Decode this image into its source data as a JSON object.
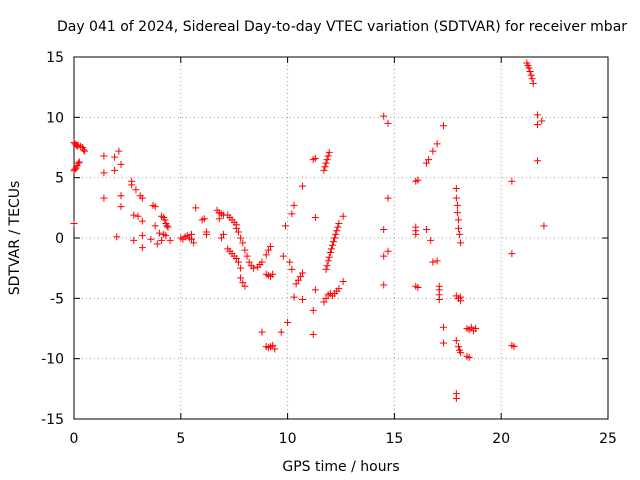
{
  "chart_data": {
    "type": "scatter",
    "title": "Day 041 of 2024, Sidereal Day-to-day VTEC variation (SDTVAR) for receiver mbar",
    "xlabel": "GPS time / hours",
    "ylabel": "SDTVAR / TECUs",
    "xlim": [
      0,
      25
    ],
    "ylim": [
      -15,
      15
    ],
    "xticks": [
      0,
      5,
      10,
      15,
      20,
      25
    ],
    "yticks": [
      -15,
      -10,
      -5,
      0,
      5,
      10,
      15
    ],
    "grid": true,
    "marker": "+",
    "color": "#ff0000",
    "points": [
      [
        0.0,
        7.9
      ],
      [
        0.05,
        7.8
      ],
      [
        0.1,
        7.7
      ],
      [
        0.15,
        7.6
      ],
      [
        0.2,
        7.7
      ],
      [
        0.3,
        7.6
      ],
      [
        0.4,
        7.5
      ],
      [
        0.45,
        7.3
      ],
      [
        0.5,
        7.2
      ],
      [
        0.0,
        5.6
      ],
      [
        0.05,
        5.7
      ],
      [
        0.1,
        5.8
      ],
      [
        0.15,
        6.0
      ],
      [
        0.2,
        6.2
      ],
      [
        0.25,
        6.3
      ],
      [
        0.0,
        1.2
      ],
      [
        1.4,
        6.8
      ],
      [
        1.4,
        5.4
      ],
      [
        1.4,
        3.3
      ],
      [
        1.9,
        6.7
      ],
      [
        1.9,
        5.6
      ],
      [
        2.1,
        7.2
      ],
      [
        2.2,
        6.1
      ],
      [
        2.2,
        3.5
      ],
      [
        2.2,
        2.6
      ],
      [
        2.0,
        0.1
      ],
      [
        2.7,
        4.7
      ],
      [
        2.7,
        4.4
      ],
      [
        2.8,
        1.9
      ],
      [
        2.8,
        -0.2
      ],
      [
        2.9,
        4.0
      ],
      [
        3.0,
        1.8
      ],
      [
        3.1,
        3.5
      ],
      [
        3.2,
        3.3
      ],
      [
        3.2,
        1.4
      ],
      [
        3.2,
        0.2
      ],
      [
        3.2,
        -0.8
      ],
      [
        3.6,
        -0.1
      ],
      [
        3.7,
        2.7
      ],
      [
        3.8,
        2.6
      ],
      [
        3.8,
        1.0
      ],
      [
        3.9,
        -0.5
      ],
      [
        4.0,
        0.4
      ],
      [
        4.1,
        -0.2
      ],
      [
        4.1,
        1.8
      ],
      [
        4.2,
        1.7
      ],
      [
        4.25,
        1.5
      ],
      [
        4.3,
        1.2
      ],
      [
        4.35,
        1.0
      ],
      [
        4.4,
        0.9
      ],
      [
        4.2,
        0.3
      ],
      [
        4.3,
        0.2
      ],
      [
        4.5,
        -0.2
      ],
      [
        5.0,
        0.0
      ],
      [
        5.1,
        -0.1
      ],
      [
        5.2,
        0.1
      ],
      [
        5.3,
        0.2
      ],
      [
        5.4,
        0.0
      ],
      [
        5.5,
        -0.1
      ],
      [
        5.5,
        0.3
      ],
      [
        5.7,
        2.5
      ],
      [
        5.6,
        -0.4
      ],
      [
        6.0,
        1.5
      ],
      [
        6.1,
        1.6
      ],
      [
        6.2,
        0.5
      ],
      [
        6.2,
        0.3
      ],
      [
        6.7,
        2.3
      ],
      [
        6.8,
        2.1
      ],
      [
        6.9,
        2.0
      ],
      [
        7.0,
        1.9
      ],
      [
        6.8,
        1.6
      ],
      [
        7.0,
        0.3
      ],
      [
        6.9,
        0.0
      ],
      [
        7.2,
        1.9
      ],
      [
        7.3,
        1.7
      ],
      [
        7.4,
        1.5
      ],
      [
        7.5,
        1.3
      ],
      [
        7.6,
        1.1
      ],
      [
        7.6,
        0.8
      ],
      [
        7.7,
        0.5
      ],
      [
        7.2,
        -0.9
      ],
      [
        7.3,
        -1.1
      ],
      [
        7.4,
        -1.3
      ],
      [
        7.5,
        -1.5
      ],
      [
        7.6,
        -1.7
      ],
      [
        7.7,
        -2.0
      ],
      [
        7.8,
        0.0
      ],
      [
        7.9,
        -0.4
      ],
      [
        8.0,
        -1.0
      ],
      [
        8.1,
        -1.5
      ],
      [
        8.2,
        -2.0
      ],
      [
        8.3,
        -2.3
      ],
      [
        8.4,
        -2.5
      ],
      [
        7.8,
        -2.5
      ],
      [
        7.9,
        -3.7
      ],
      [
        8.0,
        -4.0
      ],
      [
        7.8,
        -3.3
      ],
      [
        8.6,
        -2.4
      ],
      [
        8.7,
        -2.2
      ],
      [
        8.8,
        -2.0
      ],
      [
        8.8,
        -7.8
      ],
      [
        9.0,
        -1.4
      ],
      [
        9.1,
        -1.0
      ],
      [
        9.2,
        -0.7
      ],
      [
        9.0,
        -3.0
      ],
      [
        9.1,
        -3.1
      ],
      [
        9.2,
        -3.2
      ],
      [
        9.3,
        -3.0
      ],
      [
        9.0,
        -9.0
      ],
      [
        9.1,
        -9.1
      ],
      [
        9.2,
        -9.0
      ],
      [
        9.3,
        -8.9
      ],
      [
        9.4,
        -9.2
      ],
      [
        9.7,
        -7.8
      ],
      [
        9.8,
        -1.5
      ],
      [
        9.9,
        1.0
      ],
      [
        10.0,
        -7.0
      ],
      [
        10.1,
        -2.0
      ],
      [
        10.2,
        2.0
      ],
      [
        10.3,
        2.7
      ],
      [
        10.2,
        -2.6
      ],
      [
        10.3,
        -4.9
      ],
      [
        10.4,
        -3.8
      ],
      [
        10.5,
        -3.5
      ],
      [
        10.6,
        -3.2
      ],
      [
        10.7,
        4.3
      ],
      [
        10.7,
        -5.1
      ],
      [
        10.7,
        -2.9
      ],
      [
        11.2,
        -6.0
      ],
      [
        11.2,
        -8.0
      ],
      [
        11.2,
        6.5
      ],
      [
        11.3,
        6.6
      ],
      [
        11.3,
        1.7
      ],
      [
        11.3,
        -4.3
      ],
      [
        11.7,
        5.6
      ],
      [
        11.75,
        5.9
      ],
      [
        11.8,
        6.2
      ],
      [
        11.85,
        6.5
      ],
      [
        11.9,
        6.8
      ],
      [
        11.95,
        7.1
      ],
      [
        11.7,
        -5.3
      ],
      [
        11.8,
        -5.0
      ],
      [
        11.9,
        -4.7
      ],
      [
        12.0,
        -4.6
      ],
      [
        12.1,
        -4.8
      ],
      [
        12.2,
        -4.6
      ],
      [
        12.3,
        -4.4
      ],
      [
        12.4,
        -4.2
      ],
      [
        11.8,
        -2.6
      ],
      [
        11.85,
        -2.3
      ],
      [
        11.9,
        -1.9
      ],
      [
        11.95,
        -1.6
      ],
      [
        12.0,
        -1.2
      ],
      [
        12.05,
        -0.9
      ],
      [
        12.1,
        -0.6
      ],
      [
        12.15,
        -0.3
      ],
      [
        12.2,
        0.0
      ],
      [
        12.25,
        0.3
      ],
      [
        12.3,
        0.6
      ],
      [
        12.35,
        0.9
      ],
      [
        12.4,
        1.2
      ],
      [
        12.6,
        -3.6
      ],
      [
        12.6,
        1.8
      ],
      [
        14.5,
        10.1
      ],
      [
        14.7,
        9.5
      ],
      [
        14.5,
        0.7
      ],
      [
        14.5,
        -1.5
      ],
      [
        14.5,
        -3.9
      ],
      [
        14.7,
        3.3
      ],
      [
        14.7,
        -1.1
      ],
      [
        16.0,
        4.7
      ],
      [
        16.1,
        4.8
      ],
      [
        16.0,
        0.9
      ],
      [
        16.0,
        0.6
      ],
      [
        16.0,
        0.3
      ],
      [
        16.0,
        -4.0
      ],
      [
        16.1,
        -4.1
      ],
      [
        16.5,
        6.2
      ],
      [
        16.6,
        6.5
      ],
      [
        16.5,
        0.7
      ],
      [
        16.7,
        -0.2
      ],
      [
        16.8,
        7.2
      ],
      [
        17.0,
        7.8
      ],
      [
        16.8,
        -2.0
      ],
      [
        17.0,
        -1.9
      ],
      [
        17.1,
        -4.0
      ],
      [
        17.1,
        -4.3
      ],
      [
        17.1,
        -4.7
      ],
      [
        17.1,
        -5.1
      ],
      [
        17.3,
        9.3
      ],
      [
        17.3,
        -7.4
      ],
      [
        17.3,
        -8.7
      ],
      [
        17.9,
        4.1
      ],
      [
        17.9,
        3.3
      ],
      [
        17.95,
        2.7
      ],
      [
        17.95,
        2.1
      ],
      [
        18.0,
        1.5
      ],
      [
        18.0,
        0.8
      ],
      [
        18.05,
        0.3
      ],
      [
        18.1,
        -0.4
      ],
      [
        17.9,
        -4.8
      ],
      [
        18.0,
        -5.0
      ],
      [
        18.1,
        -4.9
      ],
      [
        18.1,
        -5.2
      ],
      [
        17.9,
        -8.5
      ],
      [
        18.0,
        -9.0
      ],
      [
        18.05,
        -9.3
      ],
      [
        18.1,
        -9.5
      ],
      [
        17.9,
        -12.9
      ],
      [
        17.9,
        -13.3
      ],
      [
        18.4,
        -7.5
      ],
      [
        18.5,
        -7.6
      ],
      [
        18.6,
        -7.4
      ],
      [
        18.7,
        -7.7
      ],
      [
        18.8,
        -7.5
      ],
      [
        18.4,
        -9.8
      ],
      [
        18.5,
        -9.9
      ],
      [
        20.5,
        4.7
      ],
      [
        20.5,
        -1.3
      ],
      [
        20.5,
        -8.9
      ],
      [
        20.6,
        -9.0
      ],
      [
        21.2,
        14.5
      ],
      [
        21.25,
        14.3
      ],
      [
        21.3,
        14.1
      ],
      [
        21.35,
        13.8
      ],
      [
        21.4,
        13.5
      ],
      [
        21.45,
        13.2
      ],
      [
        21.5,
        12.8
      ],
      [
        21.7,
        10.2
      ],
      [
        21.7,
        9.4
      ],
      [
        21.9,
        9.7
      ],
      [
        21.7,
        6.4
      ],
      [
        22.0,
        1.0
      ]
    ]
  }
}
